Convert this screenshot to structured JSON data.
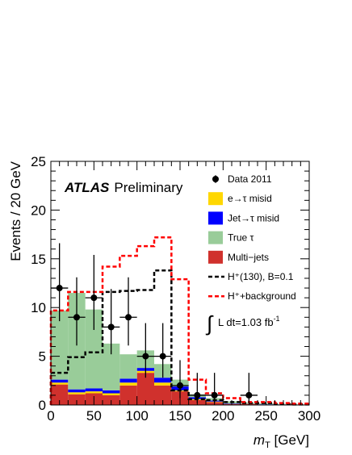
{
  "chart_data": {
    "type": "bar",
    "bin_edges": [
      0,
      20,
      40,
      60,
      80,
      100,
      120,
      140,
      160,
      180,
      200,
      220,
      240,
      260,
      280,
      300
    ],
    "xlim": [
      0,
      300
    ],
    "ylim": [
      0,
      25
    ],
    "x_ticks": [
      0,
      50,
      100,
      150,
      200,
      250,
      300
    ],
    "y_ticks": [
      0,
      5,
      10,
      15,
      20,
      25
    ],
    "xlabel": "m_T [GeV]",
    "xlabel_main": "m",
    "xlabel_sub": "T",
    "xlabel_unit": " [GeV]",
    "ylabel": "Events / 20 GeV",
    "experiment": "ATLAS",
    "status": "Preliminary",
    "stack": [
      {
        "name": "Multi−jets",
        "color": "#d0312d",
        "values": [
          2.1,
          1.1,
          1.2,
          1.0,
          2.0,
          3.3,
          2.0,
          1.4,
          0.5,
          0.3,
          0.1,
          0.1,
          0.05,
          0.05,
          0.0
        ]
      },
      {
        "name": "e→τ misid",
        "color": "#ffd700",
        "values": [
          0.2,
          0.2,
          0.2,
          0.2,
          0.3,
          0.2,
          0.3,
          0.1,
          0.1,
          0.05,
          0.02,
          0.02,
          0.0,
          0.0,
          0.0
        ]
      },
      {
        "name": "Jet→τ misid",
        "color": "#0000ff",
        "values": [
          0.3,
          0.3,
          0.3,
          0.3,
          0.4,
          0.3,
          0.5,
          0.4,
          0.2,
          0.1,
          0.05,
          0.03,
          0.02,
          0.01,
          0.0
        ]
      },
      {
        "name": "True τ",
        "color": "#99cc99",
        "values": [
          7.1,
          9.9,
          8.1,
          4.8,
          2.5,
          1.8,
          1.4,
          0.7,
          0.3,
          0.25,
          0.2,
          0.1,
          0.1,
          0.05,
          0.05
        ]
      }
    ],
    "signal": {
      "name": "H⁺(130), B=0.1",
      "color": "#000000",
      "values": [
        3.3,
        4.9,
        5.4,
        11.6,
        11.7,
        11.8,
        13.8,
        1.5,
        0.6,
        0.5,
        0.3,
        0.2,
        0.2,
        0.1,
        0.05
      ]
    },
    "signal_plus_background": {
      "name": "H⁺+background",
      "color": "#ff0000",
      "values": [
        9.7,
        11.6,
        11.6,
        14.2,
        15.3,
        16.3,
        17.2,
        12.9,
        2.6,
        1.2,
        0.7,
        0.3,
        0.3,
        0.2,
        0.15
      ]
    },
    "data": {
      "name": "Data 2011",
      "x": [
        10,
        30,
        50,
        70,
        90,
        110,
        130,
        150,
        170,
        190,
        230
      ],
      "y": [
        12,
        9,
        11,
        8,
        9,
        5,
        5,
        2,
        1,
        1,
        1
      ],
      "err_up": [
        4.6,
        4.1,
        4.4,
        3.9,
        4.1,
        3.4,
        3.4,
        2.6,
        2.3,
        2.3,
        2.3
      ],
      "err_down": [
        3.4,
        2.9,
        3.3,
        2.8,
        2.9,
        2.2,
        2.2,
        1.3,
        0.8,
        0.8,
        0.8
      ]
    },
    "legend_position": "top-right",
    "legend": [
      {
        "label": "Data 2011",
        "style": "point"
      },
      {
        "label": "e→τ misid",
        "style": "box",
        "color": "#ffd700"
      },
      {
        "label": "Jet→τ misid",
        "style": "box",
        "color": "#0000ff"
      },
      {
        "label": "True  τ",
        "style": "box",
        "color": "#99cc99"
      },
      {
        "label": "Multi−jets",
        "style": "box",
        "color": "#d0312d"
      },
      {
        "label": "H⁺(130), B=0.1",
        "style": "dash",
        "color": "#000000"
      },
      {
        "label": "H⁺+background",
        "style": "dash",
        "color": "#ff0000"
      }
    ],
    "luminosity_prefix": "L dt=1.03 fb",
    "luminosity_exp": "-1"
  }
}
